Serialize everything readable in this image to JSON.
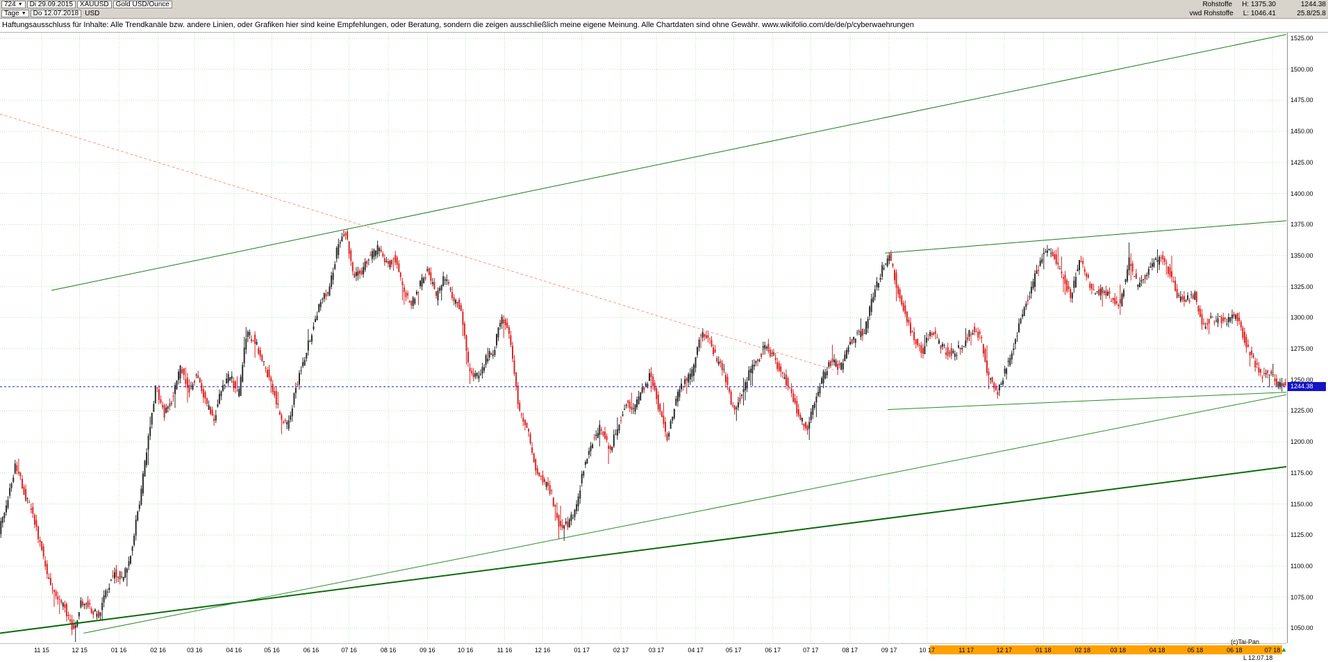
{
  "toolbar": {
    "bars_count": "724",
    "start_date": "Di 29.09.2015",
    "symbol": "XAUUSD",
    "instrument_name": "Gold USD/Ounce",
    "timeframe": "Tage",
    "end_date": "Do 12.07.2018",
    "currency": "USD",
    "right": {
      "category": "Rohstoffe",
      "high_label": "H:",
      "high_value": "1375.30",
      "last_value": "1244.38",
      "feed": "vwd Rohstoffe",
      "low_label": "L:",
      "low_value": "1046.41",
      "range_value": "25.8/25.8"
    }
  },
  "disclaimer": "Haftungsausschluss für Inhalte: Alle Trendkanäle bzw. andere Linien, oder Grafiken hier sind keine Empfehlungen, oder Beratung, sondern die zeigen ausschließlich meine eigene Meinung. Alle Chartdaten sind ohne Gewähr.  www.wikifolio.com/de/de/p/cyberwaehrungen",
  "chart_data": {
    "type": "candlestick",
    "symbol": "XAUUSD",
    "title": "Gold USD/Ounce",
    "timeframe": "Tage",
    "date_range": [
      "29.09.2015",
      "12.07.2018"
    ],
    "period_high": 1375.3,
    "period_low": 1046.41,
    "last_price": 1244.38,
    "last_price_label": "1244.38",
    "last_date_label": "L 12.07.18",
    "watermark": "(c)Tai-Pan",
    "candle_count": 724,
    "grid": true,
    "y_axis_labels": [
      "1525.00",
      "1500.00",
      "1475.00",
      "1450.00",
      "1425.00",
      "1400.00",
      "1375.00",
      "1350.00",
      "1325.00",
      "1300.00",
      "1275.00",
      "1250.00",
      "1225.00",
      "1200.00",
      "1175.00",
      "1150.00",
      "1125.00",
      "1100.00",
      "1075.00",
      "1050.00"
    ],
    "x_labels": [
      "11 15",
      "12 15",
      "01 16",
      "02 16",
      "03 16",
      "04 16",
      "05 16",
      "06 16",
      "07 16",
      "08 16",
      "09 16",
      "10 16",
      "11 16",
      "12 16",
      "01 17",
      "02 17",
      "03 17",
      "04 17",
      "05 17",
      "06 17",
      "07 17",
      "08 17",
      "09 17",
      "10 17",
      "11 17",
      "12 17",
      "01 18",
      "02 18",
      "03 18",
      "04 18",
      "05 18",
      "06 18",
      "07 18"
    ],
    "x_label_ts": [
      0.0324,
      0.0619,
      0.0924,
      0.1229,
      0.1514,
      0.1819,
      0.2114,
      0.2419,
      0.2714,
      0.3019,
      0.3323,
      0.3618,
      0.3923,
      0.4218,
      0.4523,
      0.4828,
      0.5103,
      0.5408,
      0.5703,
      0.6008,
      0.6303,
      0.6608,
      0.6912,
      0.7207,
      0.7512,
      0.7807,
      0.8112,
      0.8417,
      0.8692,
      0.8997,
      0.9292,
      0.9597,
      0.9892
    ],
    "highlight_from_index": 24,
    "close_anchors": [
      1128,
      1152,
      1183,
      1160,
      1142,
      1118,
      1088,
      1075,
      1066,
      1048,
      1072,
      1066,
      1060,
      1080,
      1096,
      1088,
      1112,
      1150,
      1198,
      1246,
      1222,
      1236,
      1260,
      1242,
      1254,
      1232,
      1218,
      1242,
      1254,
      1236,
      1288,
      1282,
      1264,
      1248,
      1222,
      1212,
      1244,
      1268,
      1290,
      1316,
      1320,
      1356,
      1368,
      1332,
      1338,
      1350,
      1356,
      1342,
      1348,
      1322,
      1310,
      1326,
      1338,
      1316,
      1334,
      1316,
      1308,
      1256,
      1252,
      1266,
      1274,
      1302,
      1282,
      1226,
      1212,
      1178,
      1168,
      1158,
      1130,
      1134,
      1148,
      1182,
      1202,
      1212,
      1192,
      1212,
      1232,
      1226,
      1242,
      1254,
      1228,
      1202,
      1232,
      1248,
      1254,
      1286,
      1284,
      1266,
      1254,
      1226,
      1236,
      1256,
      1266,
      1278,
      1266,
      1254,
      1242,
      1220,
      1212,
      1236,
      1254,
      1266,
      1258,
      1278,
      1286,
      1290,
      1318,
      1338,
      1350,
      1322,
      1300,
      1282,
      1272,
      1290,
      1280,
      1272,
      1272,
      1280,
      1290,
      1286,
      1252,
      1238,
      1258,
      1276,
      1302,
      1320,
      1340,
      1356,
      1350,
      1332,
      1316,
      1348,
      1330,
      1320,
      1322,
      1314,
      1312,
      1346,
      1326,
      1334,
      1344,
      1348,
      1336,
      1316,
      1314,
      1318,
      1292,
      1300,
      1298,
      1298,
      1302,
      1282,
      1268,
      1252,
      1256,
      1246,
      1244.38
    ],
    "trendlines": [
      {
        "name": "rising-channel-upper",
        "x1": 0.04,
        "p1": 1322,
        "x2": 1.0,
        "p2": 1528,
        "color": "#1a7a1a",
        "width": 1,
        "dash": null
      },
      {
        "name": "rising-channel-lower-major",
        "x1": 0.0,
        "p1": 1046,
        "x2": 1.0,
        "p2": 1180,
        "color": "#0b6b0b",
        "width": 2,
        "dash": null
      },
      {
        "name": "rising-support",
        "x1": 0.065,
        "p1": 1046,
        "x2": 1.0,
        "p2": 1238,
        "color": "#2a8a2a",
        "width": 1,
        "dash": null
      },
      {
        "name": "resistance-2017-2018",
        "x1": 0.688,
        "p1": 1352,
        "x2": 1.0,
        "p2": 1378,
        "color": "#1a7a1a",
        "width": 1,
        "dash": null
      },
      {
        "name": "minor-support",
        "x1": 0.69,
        "p1": 1226,
        "x2": 1.0,
        "p2": 1240,
        "color": "#2a8a2a",
        "width": 1,
        "dash": null
      },
      {
        "name": "falling-resistance",
        "x1": 0.0,
        "p1": 1464,
        "x2": 0.648,
        "p2": 1258,
        "color": "#ff9090",
        "width": 1,
        "dash": "4,3"
      }
    ],
    "hline": {
      "price": 1244.38,
      "color": "#2222cc",
      "dash": "3,3"
    },
    "colors": {
      "up": "#2a2a2a",
      "down": "#dd2222",
      "grid": "#b7e3b7",
      "highlight": "#ffa200"
    }
  }
}
